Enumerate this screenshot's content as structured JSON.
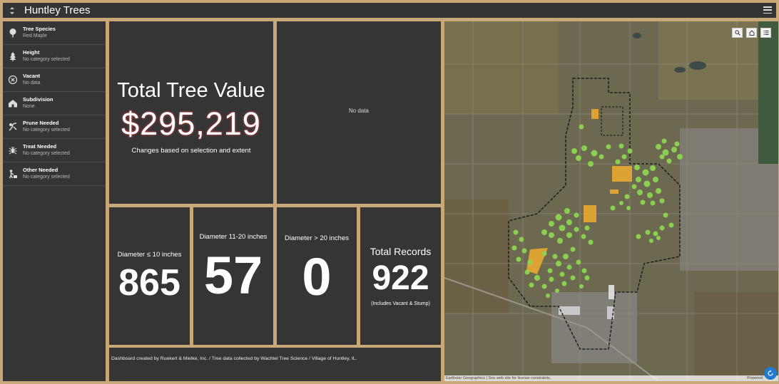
{
  "header": {
    "title": "Huntley Trees",
    "app_icon": "swap-icon",
    "menu_icon": "hamburger-icon"
  },
  "sidebar": {
    "filters": [
      {
        "label": "Tree Species",
        "value": "Red Maple",
        "icon": "tree-icon"
      },
      {
        "label": "Height",
        "value": "No category selected",
        "icon": "pine-tree-icon"
      },
      {
        "label": "Vacant",
        "value": "No data",
        "icon": "x-circle-icon"
      },
      {
        "label": "Subdivision",
        "value": "None",
        "icon": "house-icon"
      },
      {
        "label": "Prune Needed",
        "value": "No category selected",
        "icon": "prune-icon"
      },
      {
        "label": "Treat Needed",
        "value": "No category selected",
        "icon": "bug-icon"
      },
      {
        "label": "Other Needed",
        "value": "No category selected",
        "icon": "worker-icon"
      }
    ]
  },
  "total_value": {
    "title": "Total Tree Value",
    "value": "$295,219",
    "subtitle": "Changes based on selection and extent",
    "value_glow_color": "#e04848"
  },
  "chart_panel": {
    "text": "No data"
  },
  "stats": [
    {
      "title": "Diameter ≤ 10 inches",
      "value": "865"
    },
    {
      "title": "Diameter 11-20 inches",
      "value": "57"
    },
    {
      "title": "Diameter > 20 inches",
      "value": "0"
    },
    {
      "title": "Total Records",
      "value": "922",
      "note": "(Includes Vacant & Stump)"
    }
  ],
  "credit": "Dashboard created by Ruekert & Mielke, Inc. / Tree data collected by Wachtel Tree Science / Village of Huntley, IL.",
  "map": {
    "attribution": "Earthstar Geographics | See web site for license constraints.",
    "powered": "Powered",
    "tools": [
      "search-icon",
      "home-icon",
      "legend-list-icon"
    ],
    "colors": {
      "tree_points": "#8bd650",
      "parcels": "#e8a830",
      "boundary": "#111111",
      "background": "#6b6650"
    }
  },
  "colors": {
    "frame": "#c8a878",
    "panel": "#353535"
  }
}
